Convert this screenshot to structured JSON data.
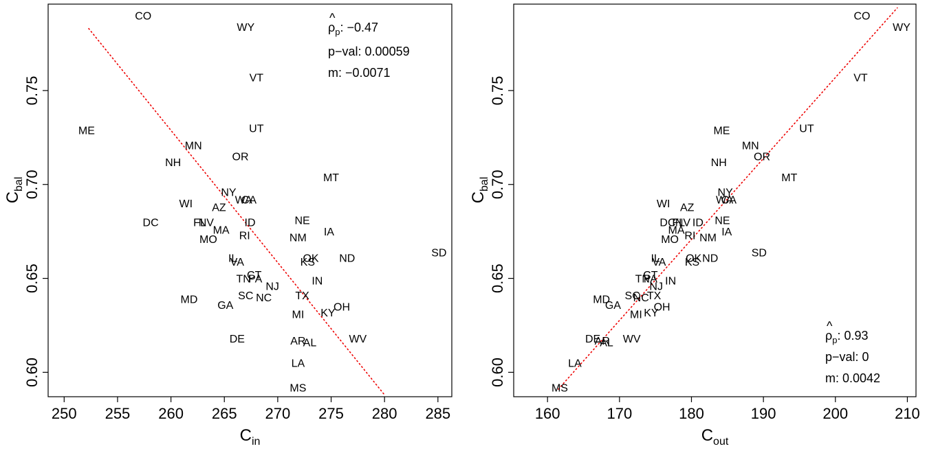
{
  "chart_data": [
    {
      "type": "scatter",
      "xlabel": "C",
      "xlabel_sub": "in",
      "ylabel": "C",
      "ylabel_sub": "bal",
      "xlim": [
        248.5,
        286.3
      ],
      "ylim": [
        0.587,
        0.796
      ],
      "xticks": [
        250,
        255,
        260,
        265,
        270,
        275,
        280,
        285
      ],
      "yticks": [
        0.6,
        0.65,
        0.7,
        0.75
      ],
      "ytick_labels": [
        "0.60",
        "0.65",
        "0.70",
        "0.75"
      ],
      "fit_line": {
        "x": [
          252.3,
          280.0
        ],
        "y": [
          0.783,
          0.588
        ]
      },
      "stats": [
        {
          "label": "ρp: ",
          "value": "−0.47"
        },
        {
          "label": "p−val: ",
          "value": "0.00059"
        },
        {
          "label": "m:  ",
          "value": "−0.0071"
        }
      ],
      "points": [
        {
          "label": "CO",
          "x": 257.4,
          "y": 0.79
        },
        {
          "label": "WY",
          "x": 267.0,
          "y": 0.784
        },
        {
          "label": "VT",
          "x": 268.0,
          "y": 0.757
        },
        {
          "label": "UT",
          "x": 268.0,
          "y": 0.73
        },
        {
          "label": "ME",
          "x": 252.1,
          "y": 0.729
        },
        {
          "label": "MN",
          "x": 262.1,
          "y": 0.721
        },
        {
          "label": "OR",
          "x": 266.5,
          "y": 0.715
        },
        {
          "label": "NH",
          "x": 260.2,
          "y": 0.712
        },
        {
          "label": "MT",
          "x": 275.0,
          "y": 0.704
        },
        {
          "label": "NY",
          "x": 265.4,
          "y": 0.696
        },
        {
          "label": "WA",
          "x": 266.8,
          "y": 0.692
        },
        {
          "label": "CA",
          "x": 267.3,
          "y": 0.692
        },
        {
          "label": "WI",
          "x": 261.4,
          "y": 0.69
        },
        {
          "label": "AZ",
          "x": 264.5,
          "y": 0.688
        },
        {
          "label": "DC",
          "x": 258.1,
          "y": 0.68
        },
        {
          "label": "FL",
          "x": 262.7,
          "y": 0.68
        },
        {
          "label": "NV",
          "x": 263.3,
          "y": 0.68
        },
        {
          "label": "ID",
          "x": 267.4,
          "y": 0.68
        },
        {
          "label": "NE",
          "x": 272.3,
          "y": 0.681
        },
        {
          "label": "MA",
          "x": 264.7,
          "y": 0.676
        },
        {
          "label": "IA",
          "x": 274.8,
          "y": 0.675
        },
        {
          "label": "RI",
          "x": 266.9,
          "y": 0.673
        },
        {
          "label": "NM",
          "x": 271.9,
          "y": 0.672
        },
        {
          "label": "MO",
          "x": 263.5,
          "y": 0.671
        },
        {
          "label": "SD",
          "x": 285.1,
          "y": 0.664
        },
        {
          "label": "IL",
          "x": 265.8,
          "y": 0.661
        },
        {
          "label": "OK",
          "x": 273.1,
          "y": 0.661
        },
        {
          "label": "ND",
          "x": 276.5,
          "y": 0.661
        },
        {
          "label": "VA",
          "x": 266.2,
          "y": 0.659
        },
        {
          "label": "KS",
          "x": 272.8,
          "y": 0.659
        },
        {
          "label": "CT",
          "x": 267.8,
          "y": 0.652
        },
        {
          "label": "TN",
          "x": 266.8,
          "y": 0.65
        },
        {
          "label": "PA",
          "x": 267.9,
          "y": 0.65
        },
        {
          "label": "IN",
          "x": 273.7,
          "y": 0.649
        },
        {
          "label": "NJ",
          "x": 269.5,
          "y": 0.646
        },
        {
          "label": "SC",
          "x": 267.0,
          "y": 0.641
        },
        {
          "label": "NC",
          "x": 268.7,
          "y": 0.64
        },
        {
          "label": "TX",
          "x": 272.3,
          "y": 0.641
        },
        {
          "label": "MD",
          "x": 261.7,
          "y": 0.639
        },
        {
          "label": "GA",
          "x": 265.1,
          "y": 0.636
        },
        {
          "label": "OH",
          "x": 276.0,
          "y": 0.635
        },
        {
          "label": "KY",
          "x": 274.7,
          "y": 0.632
        },
        {
          "label": "MI",
          "x": 271.9,
          "y": 0.631
        },
        {
          "label": "DE",
          "x": 266.2,
          "y": 0.618
        },
        {
          "label": "WV",
          "x": 277.5,
          "y": 0.618
        },
        {
          "label": "AR",
          "x": 271.9,
          "y": 0.617
        },
        {
          "label": "AL",
          "x": 273.0,
          "y": 0.616
        },
        {
          "label": "LA",
          "x": 271.9,
          "y": 0.605
        },
        {
          "label": "MS",
          "x": 271.9,
          "y": 0.592
        }
      ]
    },
    {
      "type": "scatter",
      "xlabel": "C",
      "xlabel_sub": "out",
      "ylabel": "C",
      "ylabel_sub": "bal",
      "xlim": [
        155.3,
        211.2
      ],
      "ylim": [
        0.587,
        0.796
      ],
      "xticks": [
        160,
        170,
        180,
        190,
        200,
        210
      ],
      "yticks": [
        0.6,
        0.65,
        0.7,
        0.75
      ],
      "ytick_labels": [
        "0.60",
        "0.65",
        "0.70",
        "0.75"
      ],
      "fit_line": {
        "x": [
          161.5,
          208.6
        ],
        "y": [
          0.591,
          0.794
        ]
      },
      "stats": [
        {
          "label": "ρp: ",
          "value": "0.93"
        },
        {
          "label": "p−val: ",
          "value": "0"
        },
        {
          "label": "m:  ",
          "value": "0.0042"
        }
      ],
      "points": [
        {
          "label": "CO",
          "x": 203.7,
          "y": 0.79
        },
        {
          "label": "WY",
          "x": 209.2,
          "y": 0.784
        },
        {
          "label": "VT",
          "x": 203.5,
          "y": 0.757
        },
        {
          "label": "UT",
          "x": 196.0,
          "y": 0.73
        },
        {
          "label": "ME",
          "x": 184.2,
          "y": 0.729
        },
        {
          "label": "MN",
          "x": 188.2,
          "y": 0.721
        },
        {
          "label": "OR",
          "x": 189.8,
          "y": 0.715
        },
        {
          "label": "NH",
          "x": 183.8,
          "y": 0.712
        },
        {
          "label": "MT",
          "x": 193.6,
          "y": 0.704
        },
        {
          "label": "NY",
          "x": 184.7,
          "y": 0.696
        },
        {
          "label": "WA",
          "x": 184.6,
          "y": 0.692
        },
        {
          "label": "CA",
          "x": 185.2,
          "y": 0.692
        },
        {
          "label": "WI",
          "x": 176.1,
          "y": 0.69
        },
        {
          "label": "AZ",
          "x": 179.4,
          "y": 0.688
        },
        {
          "label": "DC",
          "x": 176.7,
          "y": 0.68
        },
        {
          "label": "FL",
          "x": 178.2,
          "y": 0.68
        },
        {
          "label": "NV",
          "x": 178.8,
          "y": 0.68
        },
        {
          "label": "ID",
          "x": 180.9,
          "y": 0.68
        },
        {
          "label": "NE",
          "x": 184.3,
          "y": 0.681
        },
        {
          "label": "MA",
          "x": 177.9,
          "y": 0.676
        },
        {
          "label": "IA",
          "x": 184.9,
          "y": 0.675
        },
        {
          "label": "RI",
          "x": 179.8,
          "y": 0.673
        },
        {
          "label": "NM",
          "x": 182.3,
          "y": 0.672
        },
        {
          "label": "MO",
          "x": 177.0,
          "y": 0.671
        },
        {
          "label": "SD",
          "x": 189.4,
          "y": 0.664
        },
        {
          "label": "IL",
          "x": 175.0,
          "y": 0.661
        },
        {
          "label": "OK",
          "x": 180.3,
          "y": 0.661
        },
        {
          "label": "ND",
          "x": 182.6,
          "y": 0.661
        },
        {
          "label": "VA",
          "x": 175.5,
          "y": 0.659
        },
        {
          "label": "KS",
          "x": 180.1,
          "y": 0.659
        },
        {
          "label": "CT",
          "x": 174.3,
          "y": 0.652
        },
        {
          "label": "TN",
          "x": 173.2,
          "y": 0.65
        },
        {
          "label": "PA",
          "x": 174.3,
          "y": 0.65
        },
        {
          "label": "IN",
          "x": 177.1,
          "y": 0.649
        },
        {
          "label": "NJ",
          "x": 175.1,
          "y": 0.646
        },
        {
          "label": "SC",
          "x": 171.8,
          "y": 0.641
        },
        {
          "label": "NC",
          "x": 173.0,
          "y": 0.64
        },
        {
          "label": "TX",
          "x": 174.8,
          "y": 0.641
        },
        {
          "label": "MD",
          "x": 167.5,
          "y": 0.639
        },
        {
          "label": "GA",
          "x": 169.1,
          "y": 0.636
        },
        {
          "label": "OH",
          "x": 175.9,
          "y": 0.635
        },
        {
          "label": "KY",
          "x": 174.4,
          "y": 0.632
        },
        {
          "label": "MI",
          "x": 172.3,
          "y": 0.631
        },
        {
          "label": "DE",
          "x": 166.3,
          "y": 0.618
        },
        {
          "label": "WV",
          "x": 171.7,
          "y": 0.618
        },
        {
          "label": "AR",
          "x": 167.6,
          "y": 0.617
        },
        {
          "label": "AL",
          "x": 168.2,
          "y": 0.616
        },
        {
          "label": "LA",
          "x": 163.8,
          "y": 0.605
        },
        {
          "label": "MS",
          "x": 161.7,
          "y": 0.592
        }
      ]
    }
  ]
}
